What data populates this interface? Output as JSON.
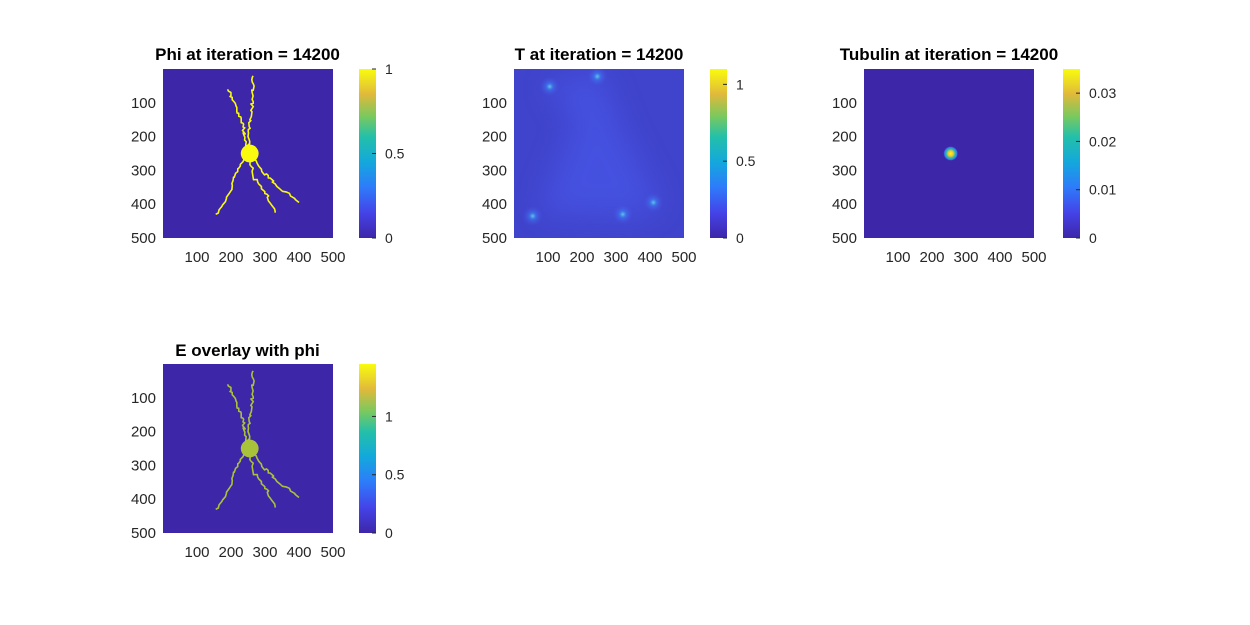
{
  "figure": {
    "colors": {
      "parula_low": "#3e26a8",
      "parula_mid": "#24b8b0",
      "parula_high": "#f9fb0e",
      "background": "#ffffff"
    },
    "panels": [
      {
        "id": "phi",
        "title": "Phi at iteration = 14200",
        "xticks": [
          "100",
          "200",
          "300",
          "400",
          "500"
        ],
        "yticks": [
          "100",
          "200",
          "300",
          "400",
          "500"
        ],
        "colorbar_ticks": [
          "0",
          "0.5",
          "1"
        ]
      },
      {
        "id": "t",
        "title": "T at iteration = 14200",
        "xticks": [
          "100",
          "200",
          "300",
          "400",
          "500"
        ],
        "yticks": [
          "100",
          "200",
          "300",
          "400",
          "500"
        ],
        "colorbar_ticks": [
          "0",
          "0.5",
          "1"
        ]
      },
      {
        "id": "tubulin",
        "title": "Tubulin at iteration = 14200",
        "xticks": [
          "100",
          "200",
          "300",
          "400",
          "500"
        ],
        "yticks": [
          "100",
          "200",
          "300",
          "400",
          "500"
        ],
        "colorbar_ticks": [
          "0",
          "0.01",
          "0.02",
          "0.03"
        ]
      },
      {
        "id": "e",
        "title": "E overlay with phi",
        "xticks": [
          "100",
          "200",
          "300",
          "400",
          "500"
        ],
        "yticks": [
          "100",
          "200",
          "300",
          "400",
          "500"
        ],
        "colorbar_ticks": [
          "0",
          "0.5",
          "1"
        ]
      }
    ]
  },
  "chart_data": [
    {
      "type": "heatmap",
      "title": "Phi at iteration = 14200",
      "xlim": [
        0,
        500
      ],
      "ylim": [
        0,
        500
      ],
      "clim": [
        0,
        1
      ],
      "colorbar_ticks": [
        0,
        0.5,
        1
      ],
      "soma": {
        "center": [
          255,
          250
        ],
        "radius": 25,
        "value": 1
      },
      "branches": [
        {
          "points": [
            [
              255,
              250
            ],
            [
              240,
              210
            ],
            [
              235,
              160
            ],
            [
              215,
              110
            ],
            [
              190,
              60
            ]
          ],
          "value": 1
        },
        {
          "points": [
            [
              255,
              250
            ],
            [
              250,
              200
            ],
            [
              260,
              140
            ],
            [
              265,
              80
            ],
            [
              265,
              20
            ]
          ],
          "value": 1
        },
        {
          "points": [
            [
              255,
              250
            ],
            [
              220,
              295
            ],
            [
              200,
              360
            ],
            [
              155,
              430
            ]
          ],
          "value": 1
        },
        {
          "points": [
            [
              255,
              250
            ],
            [
              290,
              300
            ],
            [
              330,
              340
            ],
            [
              400,
              395
            ]
          ],
          "value": 1
        },
        {
          "points": [
            [
              255,
              250
            ],
            [
              265,
              320
            ],
            [
              305,
              370
            ],
            [
              330,
              425
            ]
          ],
          "value": 1
        }
      ],
      "background_value": 0
    },
    {
      "type": "heatmap",
      "title": "T at iteration = 14200",
      "xlim": [
        0,
        500
      ],
      "ylim": [
        0,
        500
      ],
      "clim": [
        0,
        1.1
      ],
      "colorbar_ticks": [
        0,
        0.5,
        1
      ],
      "background_value": 0.15,
      "hotspots": [
        {
          "center": [
            105,
            52
          ],
          "value": 0.45
        },
        {
          "center": [
            245,
            22
          ],
          "value": 0.4
        },
        {
          "center": [
            55,
            435
          ],
          "value": 0.5
        },
        {
          "center": [
            320,
            430
          ],
          "value": 0.5
        },
        {
          "center": [
            410,
            395
          ],
          "value": 0.45
        }
      ]
    },
    {
      "type": "heatmap",
      "title": "Tubulin at iteration = 14200",
      "xlim": [
        0,
        500
      ],
      "ylim": [
        0,
        500
      ],
      "clim": [
        0,
        0.035
      ],
      "colorbar_ticks": [
        0,
        0.01,
        0.02,
        0.03
      ],
      "background_value": 0,
      "peak": {
        "center": [
          255,
          250
        ],
        "value": 0.035,
        "radius": 20
      }
    },
    {
      "type": "heatmap",
      "title": "E overlay with phi",
      "xlim": [
        0,
        500
      ],
      "ylim": [
        0,
        500
      ],
      "clim": [
        0,
        1.45
      ],
      "colorbar_ticks": [
        0,
        0.5,
        1
      ],
      "background_value": 0,
      "soma": {
        "center": [
          255,
          250
        ],
        "radius": 25,
        "value": 1.0
      },
      "branches_value": 1.0,
      "branches_same_as_phi": true
    }
  ]
}
